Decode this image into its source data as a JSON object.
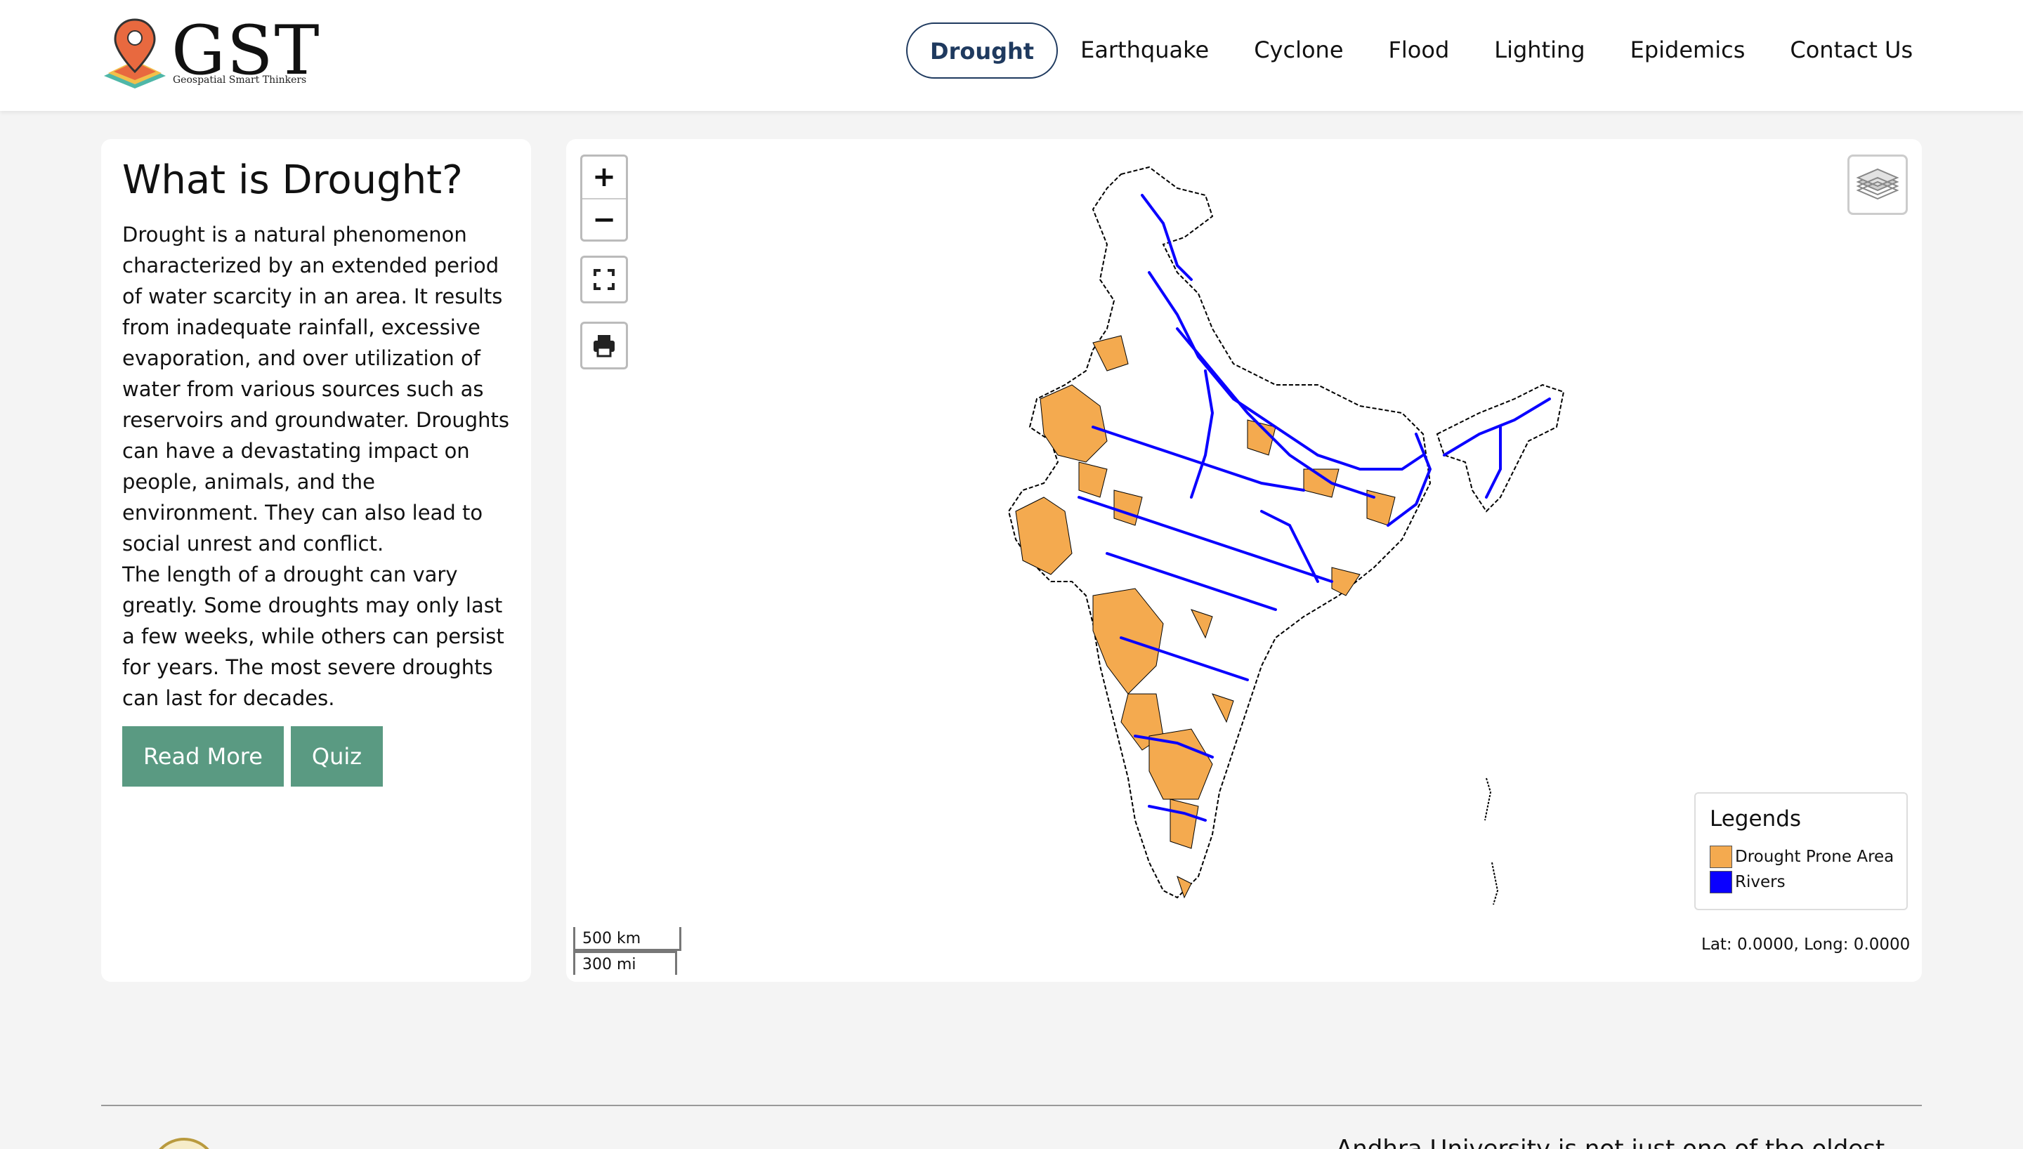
{
  "brand": {
    "name": "GST",
    "tagline": "Geospatial Smart Thinkers"
  },
  "nav": {
    "items": [
      {
        "label": "Drought",
        "active": true
      },
      {
        "label": "Earthquake",
        "active": false
      },
      {
        "label": "Cyclone",
        "active": false
      },
      {
        "label": "Flood",
        "active": false
      },
      {
        "label": "Lighting",
        "active": false
      },
      {
        "label": "Epidemics",
        "active": false
      },
      {
        "label": "Contact Us",
        "active": false
      }
    ]
  },
  "info": {
    "title": "What is Drought?",
    "paragraph_1": "Drought is a natural phenomenon characterized by an extended period of water scarcity in an area. It results from inadequate rainfall, excessive evaporation, and over utilization of water from various sources such as reservoirs and groundwater. Droughts can have a devastating impact on people, animals, and the environment. They can also lead to social unrest and conflict.",
    "paragraph_2": "The length of a drought can vary greatly. Some droughts may only last a few weeks, while others can persist for years. The most severe droughts can last for decades.",
    "read_more_label": "Read More",
    "quiz_label": "Quiz"
  },
  "map": {
    "zoom_in_label": "+",
    "zoom_out_label": "−",
    "scale_km": "500 km",
    "scale_mi": "300 mi",
    "coordinates": "Lat: 0.0000, Long: 0.0000",
    "legend": {
      "title": "Legends",
      "items": [
        {
          "label": "Drought Prone Area",
          "color": "#f4aa4f"
        },
        {
          "label": "Rivers",
          "color": "#0a00ff"
        }
      ]
    }
  },
  "footer": {
    "text": "Andhra University is not just one of the oldest"
  },
  "colors": {
    "accent": "#1f3a5f",
    "button": "#5a9a82",
    "drought": "#f4aa4f",
    "river": "#0a00ff"
  }
}
